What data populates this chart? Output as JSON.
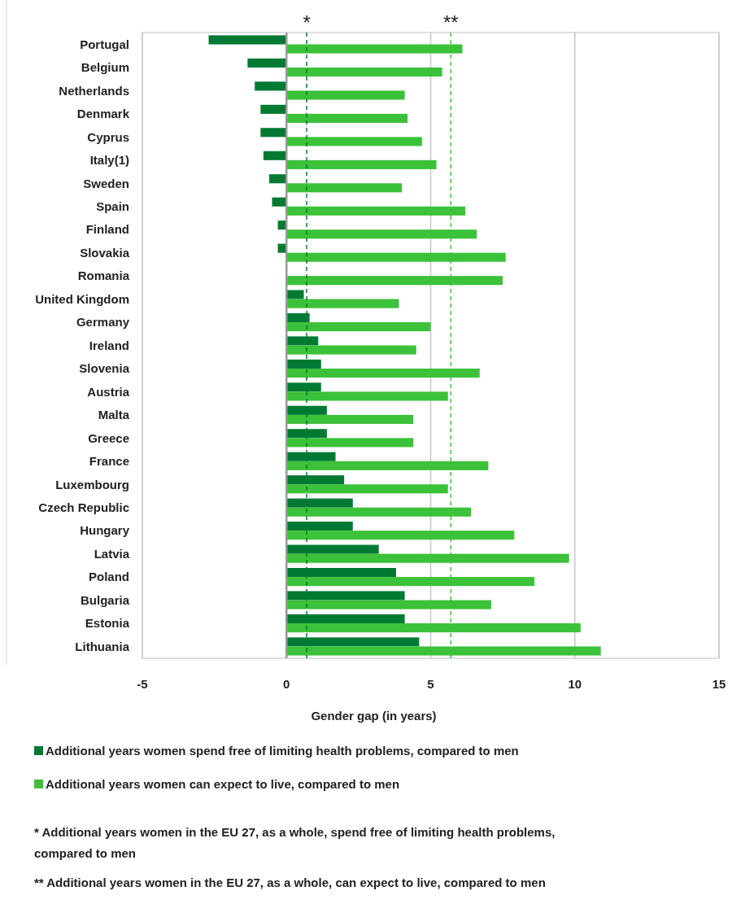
{
  "chart_data": {
    "type": "bar",
    "orientation": "horizontal",
    "xlabel": "Gender gap (in years)",
    "categories": [
      "Portugal",
      "Belgium",
      "Netherlands",
      "Denmark",
      "Cyprus",
      "Italy(1)",
      "Sweden",
      "Spain",
      "Finland",
      "Slovakia",
      "Romania",
      "United Kingdom",
      "Germany",
      "Ireland",
      "Slovenia",
      "Austria",
      "Malta",
      "Greece",
      "France",
      "Luxembourg",
      "Czech Republic",
      "Hungary",
      "Latvia",
      "Poland",
      "Bulgaria",
      "Estonia",
      "Lithuania"
    ],
    "series": [
      {
        "name": "Additional years women spend free of limiting health problems, compared to men",
        "color": "#007a33",
        "values": [
          -2.7,
          -1.35,
          -1.1,
          -0.9,
          -0.9,
          -0.8,
          -0.6,
          -0.5,
          -0.3,
          -0.3,
          0,
          0.6,
          0.8,
          1.1,
          1.2,
          1.2,
          1.4,
          1.4,
          1.7,
          2.0,
          2.3,
          2.3,
          3.2,
          3.8,
          4.1,
          4.1,
          4.6
        ]
      },
      {
        "name": "Additional years women can expect to live, compared to men",
        "color": "#3cc13a",
        "values": [
          6.1,
          5.4,
          4.1,
          4.2,
          4.7,
          5.2,
          4.0,
          6.2,
          6.6,
          7.6,
          7.5,
          3.9,
          5.0,
          4.5,
          6.7,
          5.6,
          4.4,
          4.4,
          7.0,
          5.6,
          6.4,
          7.9,
          9.8,
          8.6,
          7.1,
          10.2,
          10.9
        ]
      }
    ],
    "xlim": [
      -5,
      15
    ],
    "xticks": [
      -5,
      0,
      5,
      10,
      15
    ],
    "grid": "x",
    "legend": "bottom",
    "ref_lines": [
      {
        "axis": "x",
        "value": 0.7,
        "label": "*",
        "color": "#007a33",
        "line_style": "dashed"
      },
      {
        "axis": "x",
        "value": 5.7,
        "label": "**",
        "color": "#3cc13a",
        "line_style": "dashed"
      }
    ],
    "annotations": [
      "* Additional years women in the EU 27, as a whole, spend free of limiting health problems, compared to men",
      "** Additional years women in the EU 27, as a whole, can expect to live, compared to men"
    ]
  }
}
